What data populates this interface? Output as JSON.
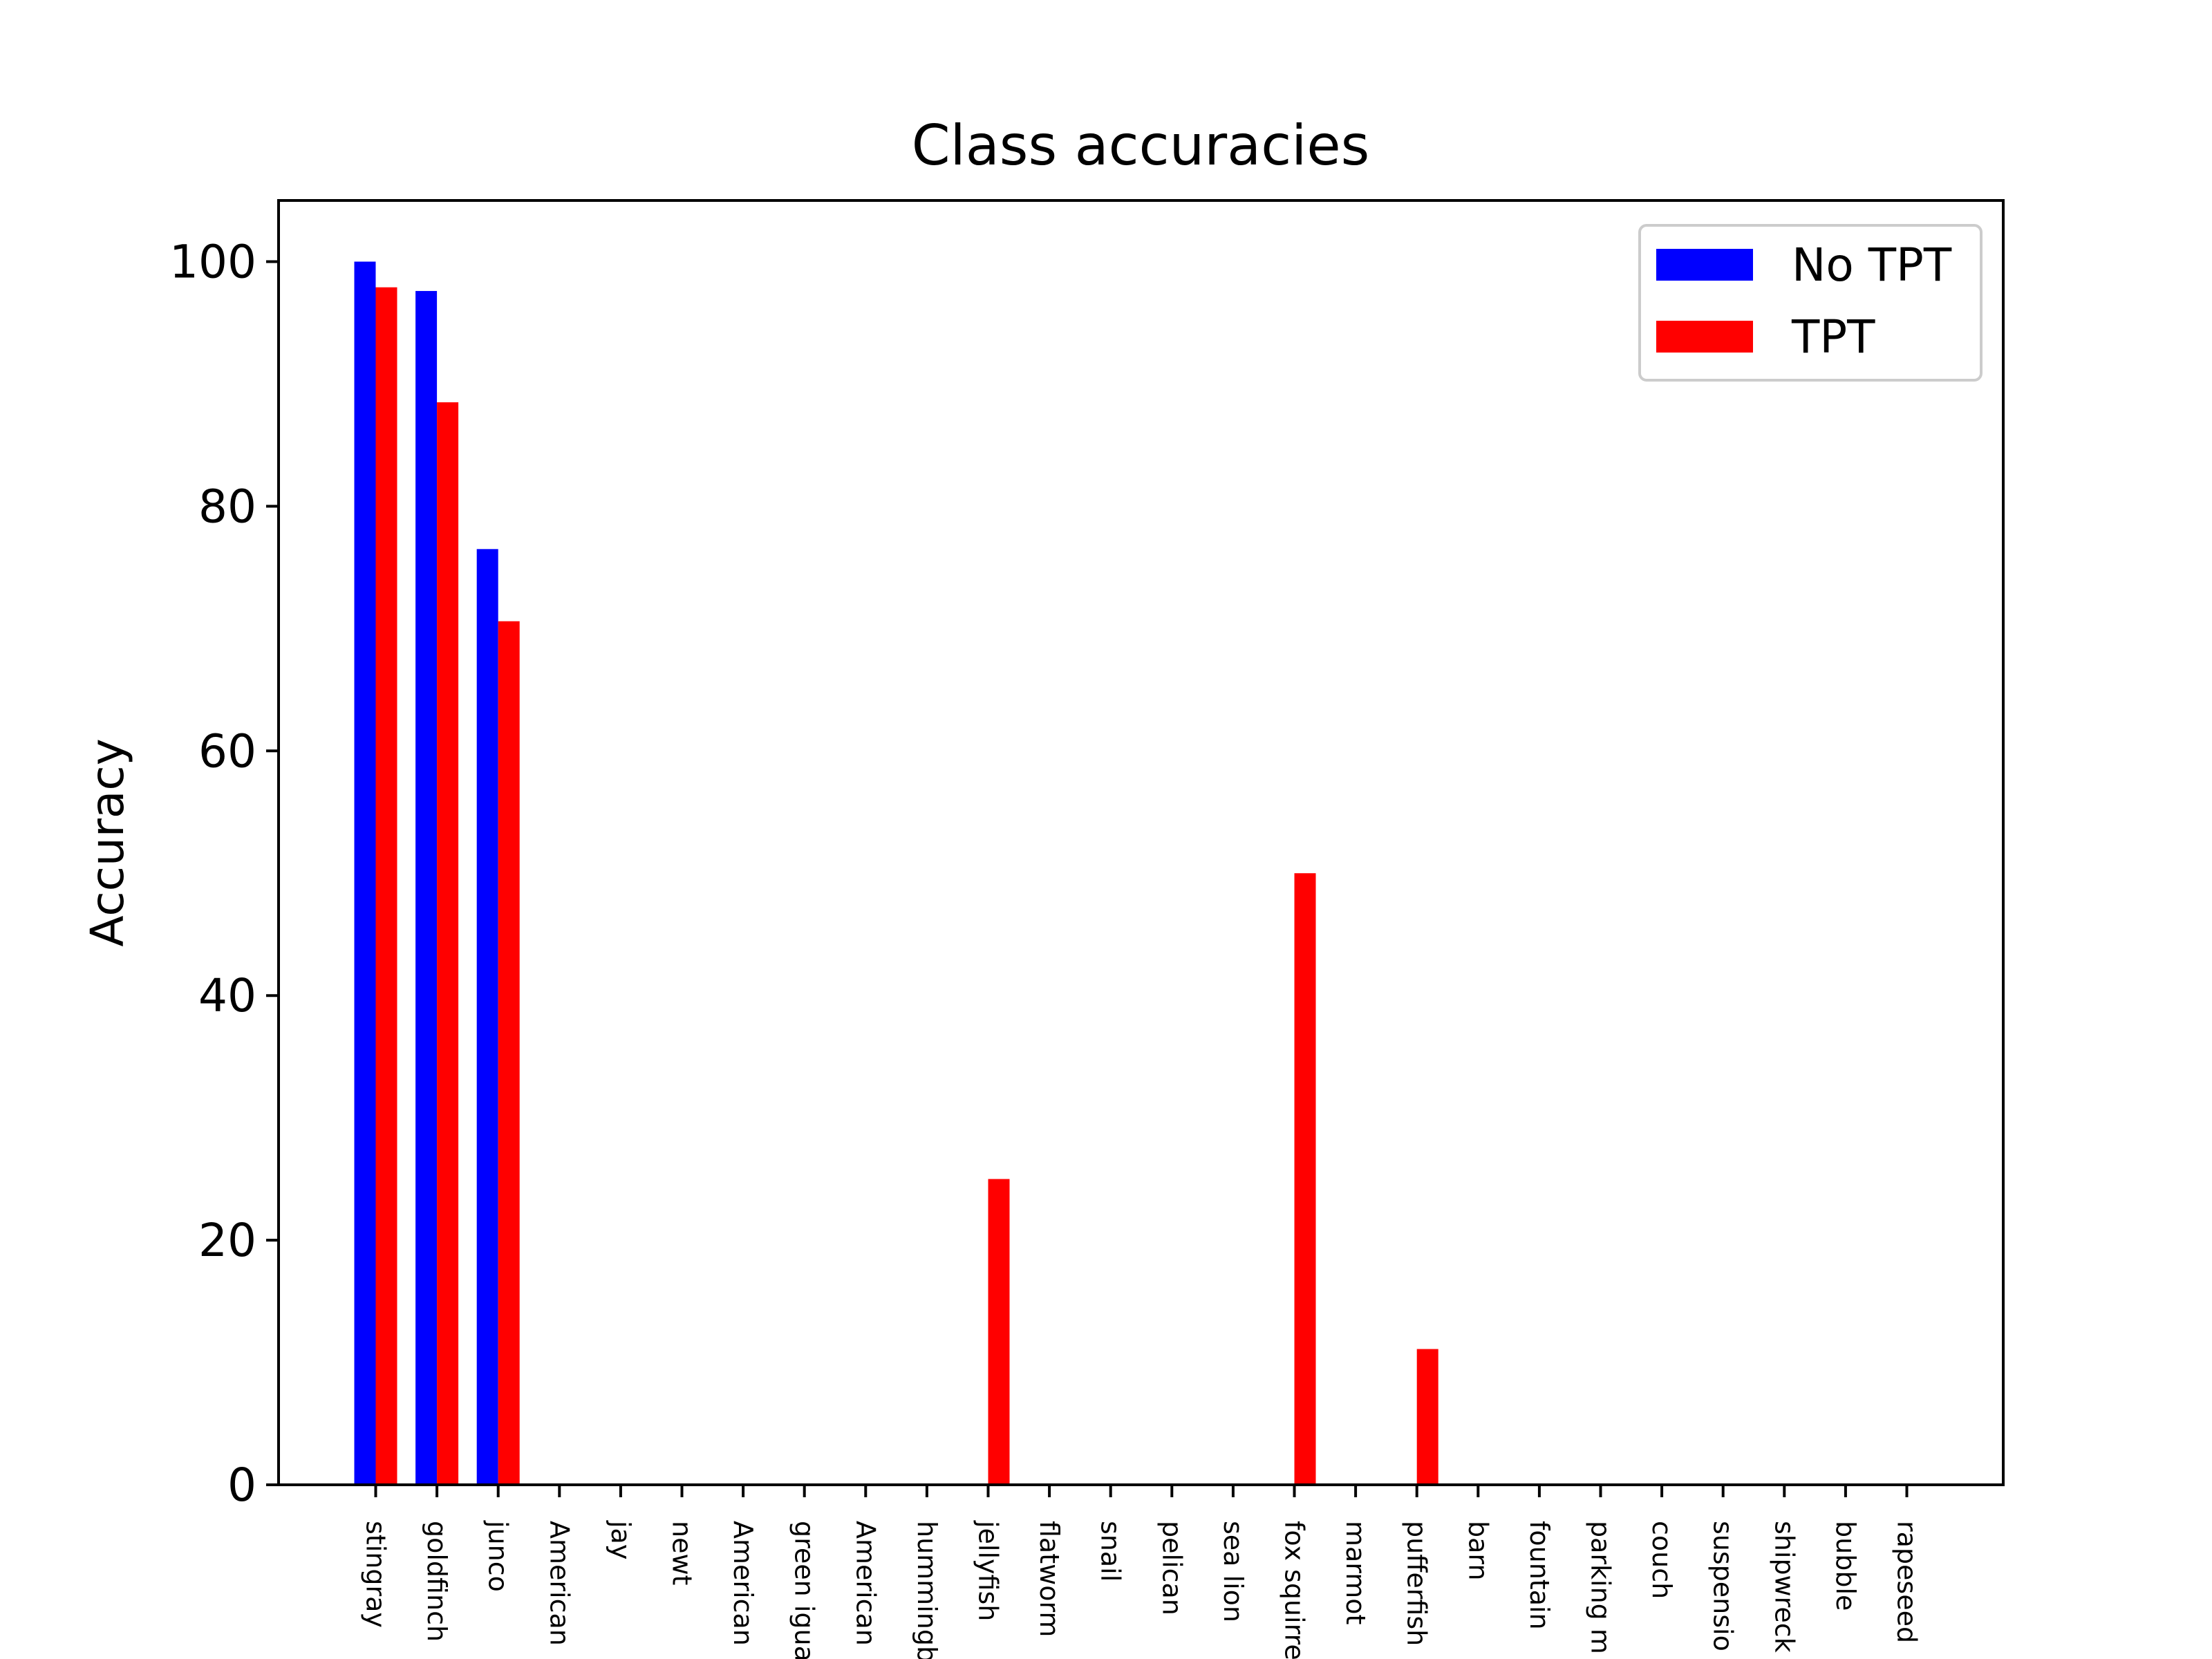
{
  "chart_data": {
    "type": "bar",
    "title": "Class accuracies",
    "xlabel": "",
    "ylabel": "Accuracy",
    "ylim": [
      0,
      105
    ],
    "yticks": [
      0,
      20,
      40,
      60,
      80,
      100
    ],
    "grid": false,
    "legend_position": "top-right",
    "categories": [
      "stingray",
      "goldfinch",
      "junco",
      "American",
      "jay",
      "newt",
      "American",
      "green igua",
      "American",
      "hummingb",
      "jellyfish",
      "flatworm",
      "snail",
      "pelican",
      "sea lion",
      "fox squirre",
      "marmot",
      "pufferfish",
      "barn",
      "fountain",
      "parking m",
      "couch",
      "suspensio",
      "shipwreck",
      "bubble",
      "rapeseed"
    ],
    "series": [
      {
        "name": "No TPT",
        "color": "#0000ff",
        "values": [
          100,
          97.6,
          76.5,
          0,
          0,
          0,
          0,
          0,
          0,
          0,
          0,
          0,
          0,
          0,
          0,
          0,
          0,
          0,
          0,
          0,
          0,
          0,
          0,
          0,
          0,
          0
        ]
      },
      {
        "name": "TPT",
        "color": "#ff0000",
        "values": [
          97.9,
          88.5,
          70.6,
          0,
          0,
          0,
          0,
          0,
          0,
          0,
          25,
          0,
          0,
          0,
          0,
          50,
          0,
          11.1,
          0,
          0,
          0,
          0,
          0,
          0,
          0,
          0
        ]
      }
    ]
  }
}
